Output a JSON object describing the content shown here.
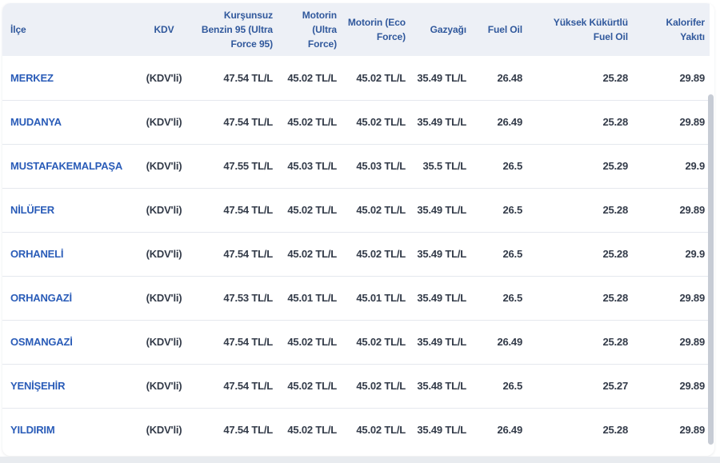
{
  "table": {
    "columns": [
      {
        "key": "ilce",
        "label": "İlçe"
      },
      {
        "key": "kdv",
        "label": "KDV"
      },
      {
        "key": "kursunsuz-benzin-95",
        "label": "Kurşunsuz Benzin 95 (Ultra Force 95)"
      },
      {
        "key": "motorin-ultra-force",
        "label": "Motorin (Ultra Force)"
      },
      {
        "key": "motorin-eco-force",
        "label": "Motorin (Eco Force)"
      },
      {
        "key": "gazyagi",
        "label": "Gazyağı"
      },
      {
        "key": "fuel-oil",
        "label": "Fuel Oil"
      },
      {
        "key": "yuksek-kukurtlu-fuel-oil",
        "label": "Yüksek Kükürtlü Fuel Oil"
      },
      {
        "key": "kalorifer-yakiti",
        "label": "Kalorifer Yakıtı"
      }
    ],
    "rows": [
      {
        "district": "MERKEZ",
        "kdv": "(KDV'li)",
        "values": [
          "47.54 TL/L",
          "45.02 TL/L",
          "45.02 TL/L",
          "35.49 TL/L",
          "26.48",
          "25.28",
          "29.89"
        ]
      },
      {
        "district": "MUDANYA",
        "kdv": "(KDV'li)",
        "values": [
          "47.54 TL/L",
          "45.02 TL/L",
          "45.02 TL/L",
          "35.49 TL/L",
          "26.49",
          "25.28",
          "29.89"
        ]
      },
      {
        "district": "MUSTAFAKEMALPAŞA",
        "kdv": "(KDV'li)",
        "values": [
          "47.55 TL/L",
          "45.03 TL/L",
          "45.03 TL/L",
          "35.5 TL/L",
          "26.5",
          "25.29",
          "29.9"
        ]
      },
      {
        "district": "NİLÜFER",
        "kdv": "(KDV'li)",
        "values": [
          "47.54 TL/L",
          "45.02 TL/L",
          "45.02 TL/L",
          "35.49 TL/L",
          "26.5",
          "25.28",
          "29.89"
        ]
      },
      {
        "district": "ORHANELİ",
        "kdv": "(KDV'li)",
        "values": [
          "47.54 TL/L",
          "45.02 TL/L",
          "45.02 TL/L",
          "35.49 TL/L",
          "26.5",
          "25.28",
          "29.9"
        ]
      },
      {
        "district": "ORHANGAZİ",
        "kdv": "(KDV'li)",
        "values": [
          "47.53 TL/L",
          "45.01 TL/L",
          "45.01 TL/L",
          "35.49 TL/L",
          "26.5",
          "25.28",
          "29.89"
        ]
      },
      {
        "district": "OSMANGAZİ",
        "kdv": "(KDV'li)",
        "values": [
          "47.54 TL/L",
          "45.02 TL/L",
          "45.02 TL/L",
          "35.49 TL/L",
          "26.49",
          "25.28",
          "29.89"
        ]
      },
      {
        "district": "YENİŞEHİR",
        "kdv": "(KDV'li)",
        "values": [
          "47.54 TL/L",
          "45.02 TL/L",
          "45.02 TL/L",
          "35.48 TL/L",
          "26.5",
          "25.27",
          "29.89"
        ]
      },
      {
        "district": "YILDIRIM",
        "kdv": "(KDV'li)",
        "values": [
          "47.54 TL/L",
          "45.02 TL/L",
          "45.02 TL/L",
          "35.49 TL/L",
          "26.49",
          "25.28",
          "29.89"
        ]
      }
    ]
  },
  "colors": {
    "header_background": "#edf0f6",
    "header_text": "#30589c",
    "district_link": "#2a5cb8",
    "value_text": "#333b49",
    "row_separator": "#e5e8ee",
    "scrollbar_thumb": "#c7ccd5",
    "page_strip": "#e8ebef"
  }
}
